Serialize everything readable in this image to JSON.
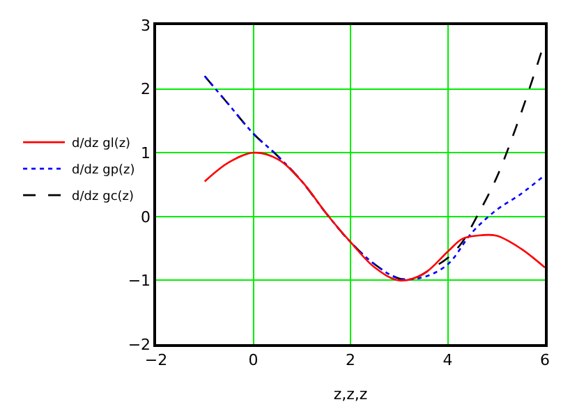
{
  "chart_data": {
    "type": "line",
    "xlabel": "z,z,z",
    "xlim": [
      -2,
      6
    ],
    "xticks": [
      -2,
      0,
      2,
      4,
      6
    ],
    "ylim": [
      -2,
      3
    ],
    "yticks": [
      -2,
      -1,
      0,
      1,
      2,
      3
    ],
    "grid": true,
    "legend": "left",
    "marker": "none",
    "series": [
      {
        "name": "d/dz gl(z)",
        "color": "#ff0000",
        "line_style": "solid",
        "x": [
          -1,
          -0.5,
          0,
          0.5,
          1,
          1.5,
          2,
          2.5,
          3,
          3.5,
          4,
          4.3,
          4.6,
          5,
          5.5,
          6
        ],
        "values": [
          0.55,
          0.85,
          1.0,
          0.9,
          0.55,
          0.05,
          -0.4,
          -0.8,
          -1.0,
          -0.9,
          -0.55,
          -0.35,
          -0.3,
          -0.3,
          -0.5,
          -0.8
        ]
      },
      {
        "name": "d/dz gp(z)",
        "color": "#0000ff",
        "line_style": "dotted",
        "x": [
          -1,
          -0.5,
          0,
          0.5,
          1,
          1.5,
          2,
          2.5,
          3,
          3.5,
          4,
          4.5,
          5,
          5.5,
          6
        ],
        "values": [
          2.2,
          1.75,
          1.3,
          0.95,
          0.55,
          0.05,
          -0.4,
          -0.75,
          -0.97,
          -0.95,
          -0.75,
          -0.25,
          0.1,
          0.35,
          0.65
        ]
      },
      {
        "name": "d/dz gc(z)",
        "color": "#000000",
        "line_style": "dashed",
        "x": [
          -1,
          -0.5,
          0,
          0.5,
          1,
          1.5,
          2,
          2.5,
          3,
          3.3,
          3.7,
          4,
          4.3,
          4.6,
          5,
          5.5,
          6
        ],
        "values": [
          2.2,
          1.75,
          1.3,
          0.95,
          0.55,
          0.05,
          -0.4,
          -0.75,
          -0.97,
          -0.97,
          -0.8,
          -0.65,
          -0.4,
          0.0,
          0.6,
          1.6,
          2.75
        ]
      }
    ]
  }
}
